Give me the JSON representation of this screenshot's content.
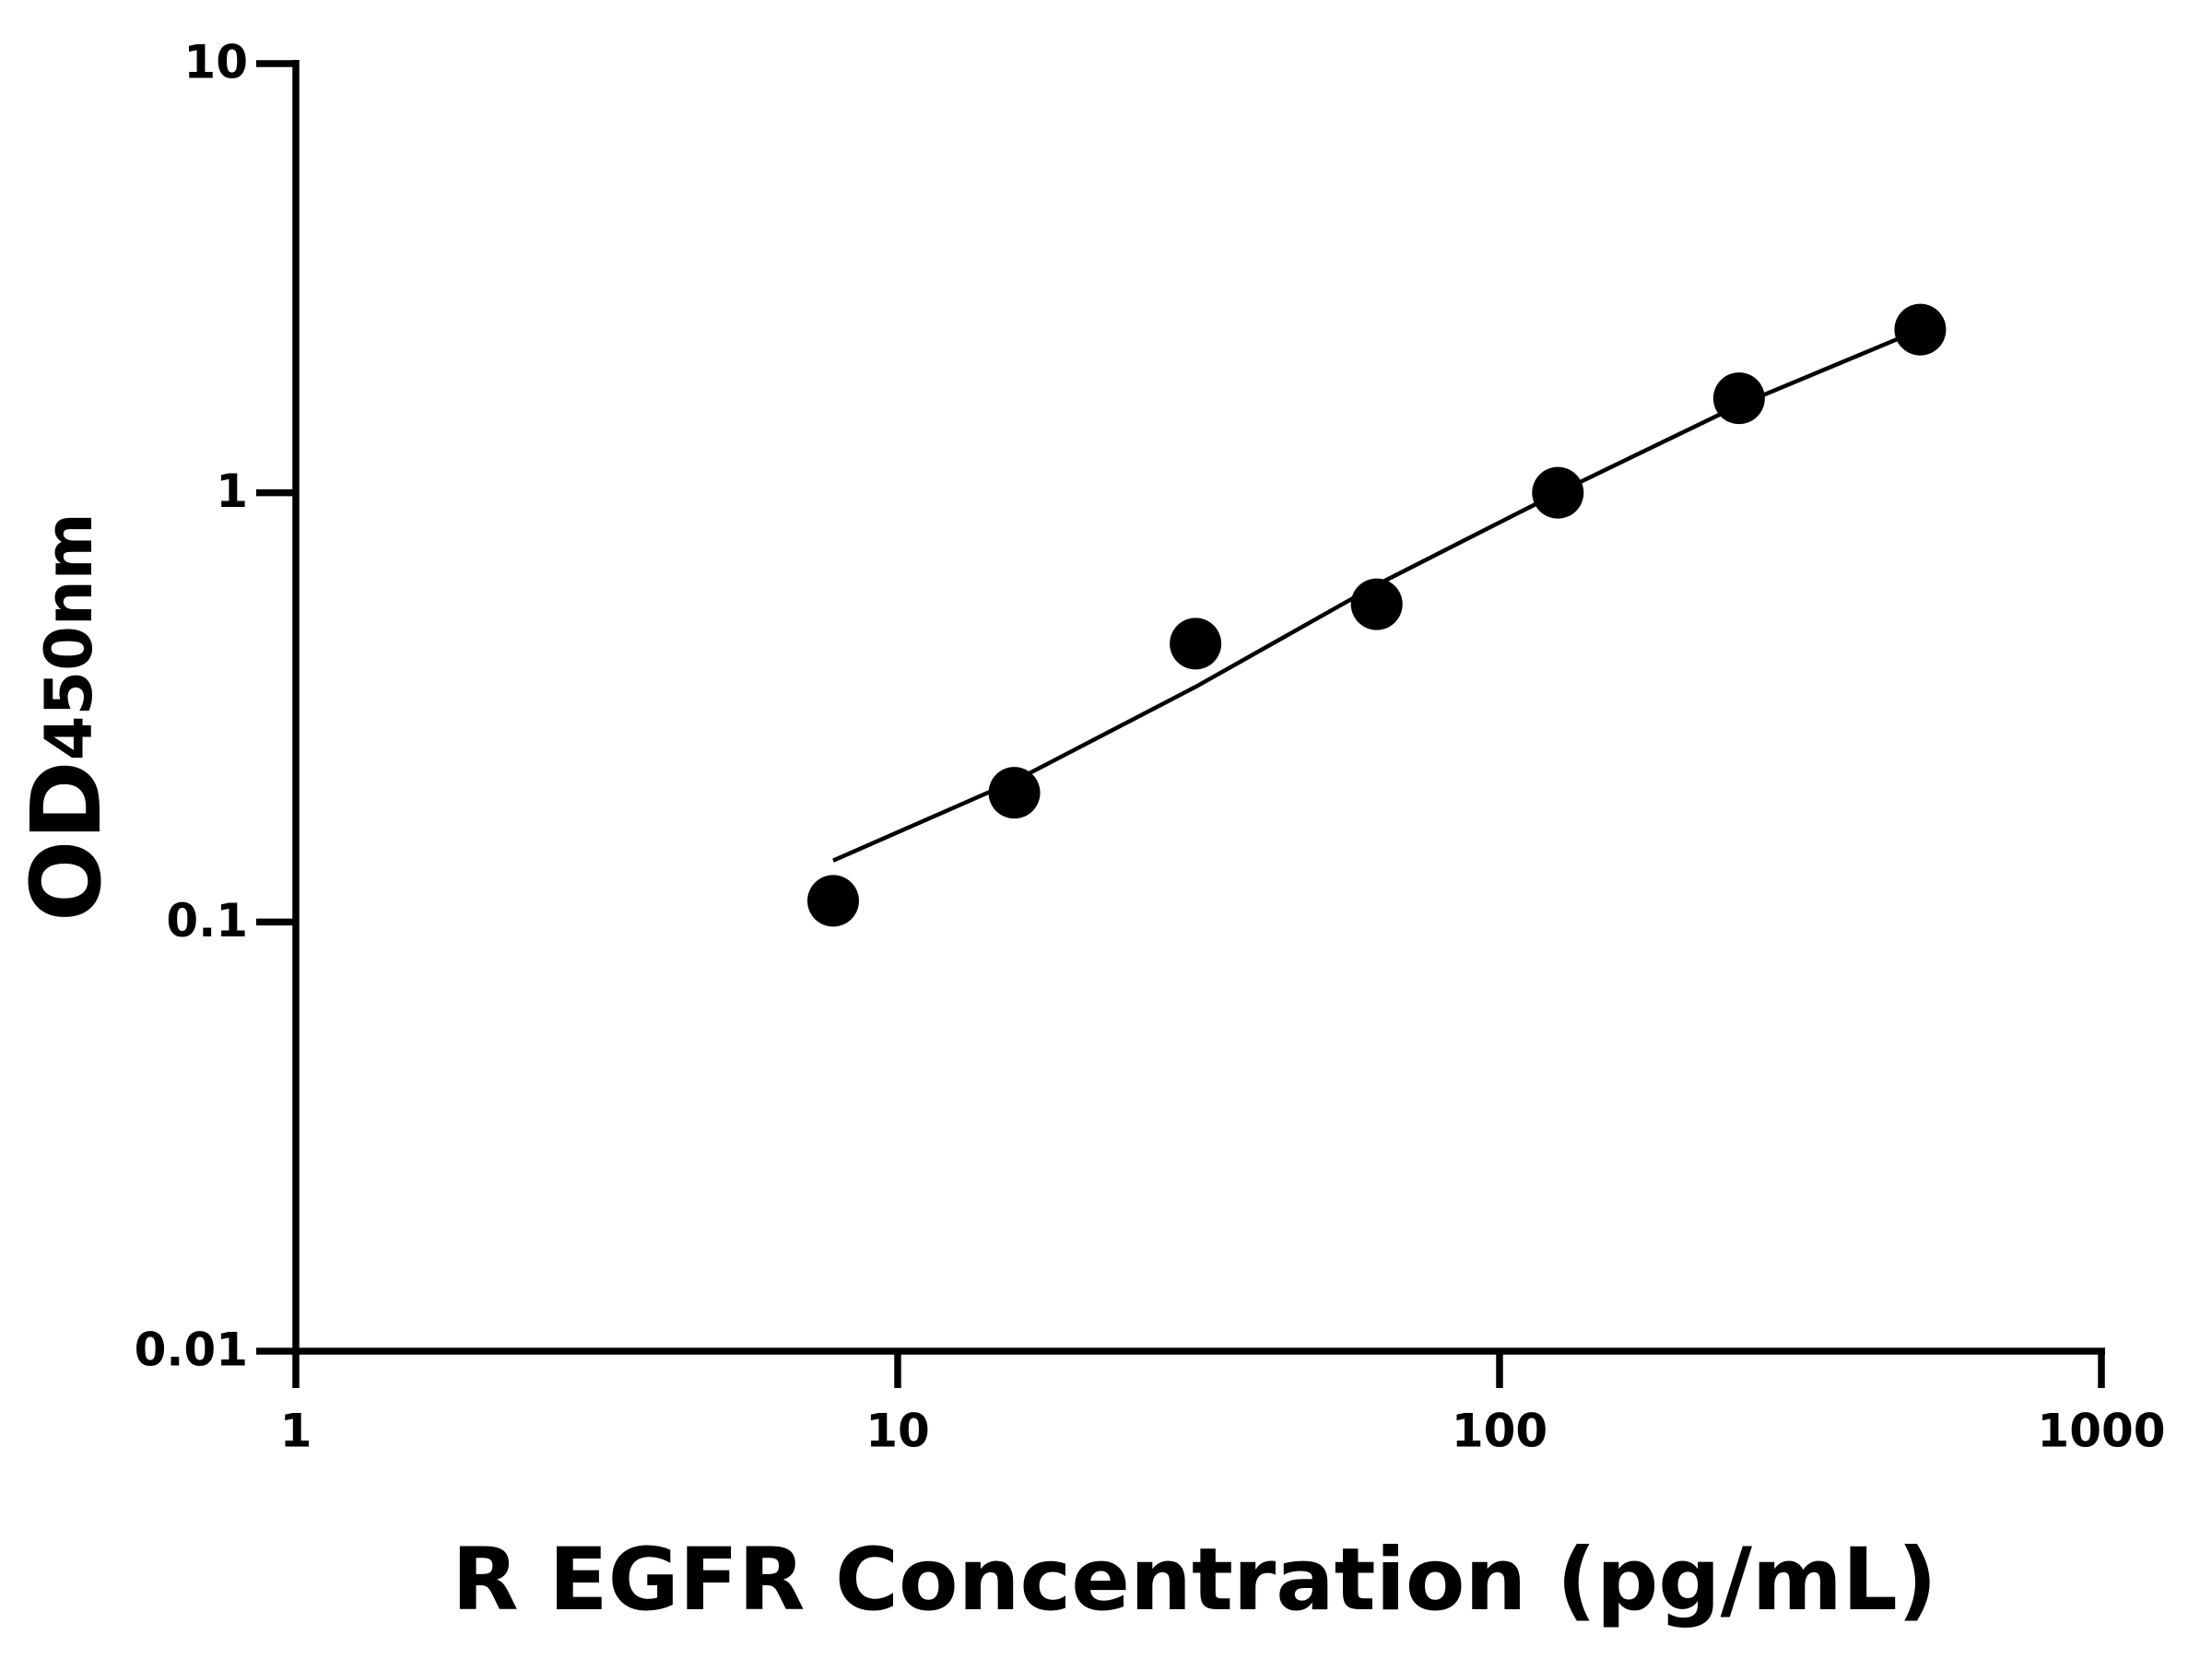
{
  "chart_data": {
    "type": "scatter",
    "x_label": "R EGFR Concentration (pg/mL)",
    "y_label": "OD",
    "y_label_sub": "450nm",
    "xscale": "log",
    "yscale": "log",
    "xlim": [
      1,
      1000
    ],
    "xticks": [
      1,
      10,
      100,
      1000
    ],
    "ylim": [
      0.01,
      10
    ],
    "yticks": [
      0.01,
      0.1,
      1,
      10
    ],
    "series": [
      {
        "x": [
          7.8125,
          15.625,
          31.25,
          62.5,
          125,
          250,
          500
        ],
        "values": [
          0.112,
          0.2,
          0.445,
          0.55,
          1.0,
          1.66,
          2.4
        ],
        "color": "#000000"
      }
    ],
    "fit_curve": {
      "x": [
        7.8125,
        15.625,
        31.25,
        62.5,
        125,
        250,
        500
      ],
      "values": [
        0.139,
        0.213,
        0.353,
        0.61,
        1.0,
        1.6,
        2.4
      ],
      "color": "#000000"
    }
  }
}
